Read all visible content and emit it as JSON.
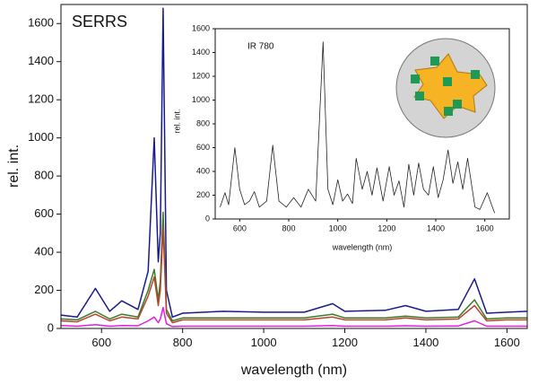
{
  "chart_data": [
    {
      "type": "line",
      "annotation": "SERRS",
      "x_label": "wavelength (nm)",
      "y_label": "rel. int.",
      "x": [
        500,
        540,
        585,
        620,
        650,
        690,
        715,
        730,
        740,
        745,
        752,
        760,
        775,
        800,
        900,
        1000,
        1100,
        1170,
        1200,
        1300,
        1350,
        1400,
        1480,
        1520,
        1550,
        1600,
        1650
      ],
      "series": [
        {
          "color": "#1a1a8c",
          "values": [
            70,
            60,
            210,
            90,
            145,
            100,
            300,
            1000,
            350,
            500,
            1680,
            200,
            60,
            80,
            90,
            85,
            85,
            130,
            90,
            95,
            120,
            90,
            100,
            260,
            80,
            85,
            90
          ]
        },
        {
          "color": "#3d7a2a",
          "values": [
            50,
            45,
            90,
            50,
            75,
            60,
            200,
            310,
            150,
            250,
            610,
            100,
            40,
            55,
            55,
            55,
            55,
            75,
            55,
            55,
            65,
            55,
            60,
            150,
            50,
            55,
            55
          ]
        },
        {
          "color": "#b5452f",
          "values": [
            40,
            35,
            75,
            40,
            60,
            50,
            170,
            270,
            120,
            200,
            530,
            80,
            30,
            45,
            45,
            45,
            45,
            60,
            45,
            45,
            55,
            45,
            50,
            120,
            40,
            45,
            45
          ]
        },
        {
          "color": "#e020e0",
          "values": [
            15,
            12,
            20,
            12,
            15,
            14,
            40,
            60,
            30,
            50,
            110,
            25,
            10,
            12,
            12,
            12,
            12,
            15,
            12,
            12,
            14,
            12,
            13,
            40,
            12,
            12,
            12
          ]
        }
      ],
      "xlim": [
        500,
        1650
      ],
      "ylim": [
        0,
        1700
      ],
      "xticks": [
        600,
        800,
        1000,
        1200,
        1400,
        1600
      ],
      "yticks": [
        0,
        200,
        400,
        600,
        800,
        1000,
        1200,
        1400,
        1600
      ]
    },
    {
      "type": "line",
      "annotation": "IR 780",
      "x_label": "wavelength (nm)",
      "y_label": "rel. int.",
      "x": [
        520,
        540,
        555,
        580,
        600,
        620,
        640,
        660,
        680,
        710,
        735,
        760,
        790,
        820,
        850,
        880,
        910,
        940,
        960,
        980,
        1000,
        1020,
        1040,
        1060,
        1075,
        1100,
        1120,
        1140,
        1160,
        1185,
        1210,
        1230,
        1250,
        1270,
        1290,
        1310,
        1330,
        1350,
        1370,
        1390,
        1410,
        1430,
        1450,
        1470,
        1490,
        1510,
        1530,
        1560,
        1580,
        1610,
        1640
      ],
      "series": [
        {
          "color": "#222222",
          "values": [
            100,
            220,
            120,
            600,
            250,
            120,
            150,
            230,
            100,
            150,
            620,
            150,
            100,
            180,
            100,
            250,
            150,
            1490,
            250,
            120,
            330,
            150,
            210,
            130,
            510,
            250,
            400,
            200,
            430,
            150,
            440,
            200,
            320,
            100,
            460,
            200,
            470,
            250,
            200,
            440,
            180,
            330,
            580,
            300,
            480,
            250,
            510,
            100,
            80,
            220,
            50
          ]
        }
      ],
      "xlim": [
        500,
        1700
      ],
      "ylim": [
        0,
        1600
      ],
      "xticks": [
        600,
        800,
        1000,
        1200,
        1400,
        1600
      ],
      "yticks": [
        0,
        200,
        400,
        600,
        800,
        1000,
        1200,
        1400,
        1600
      ]
    }
  ]
}
